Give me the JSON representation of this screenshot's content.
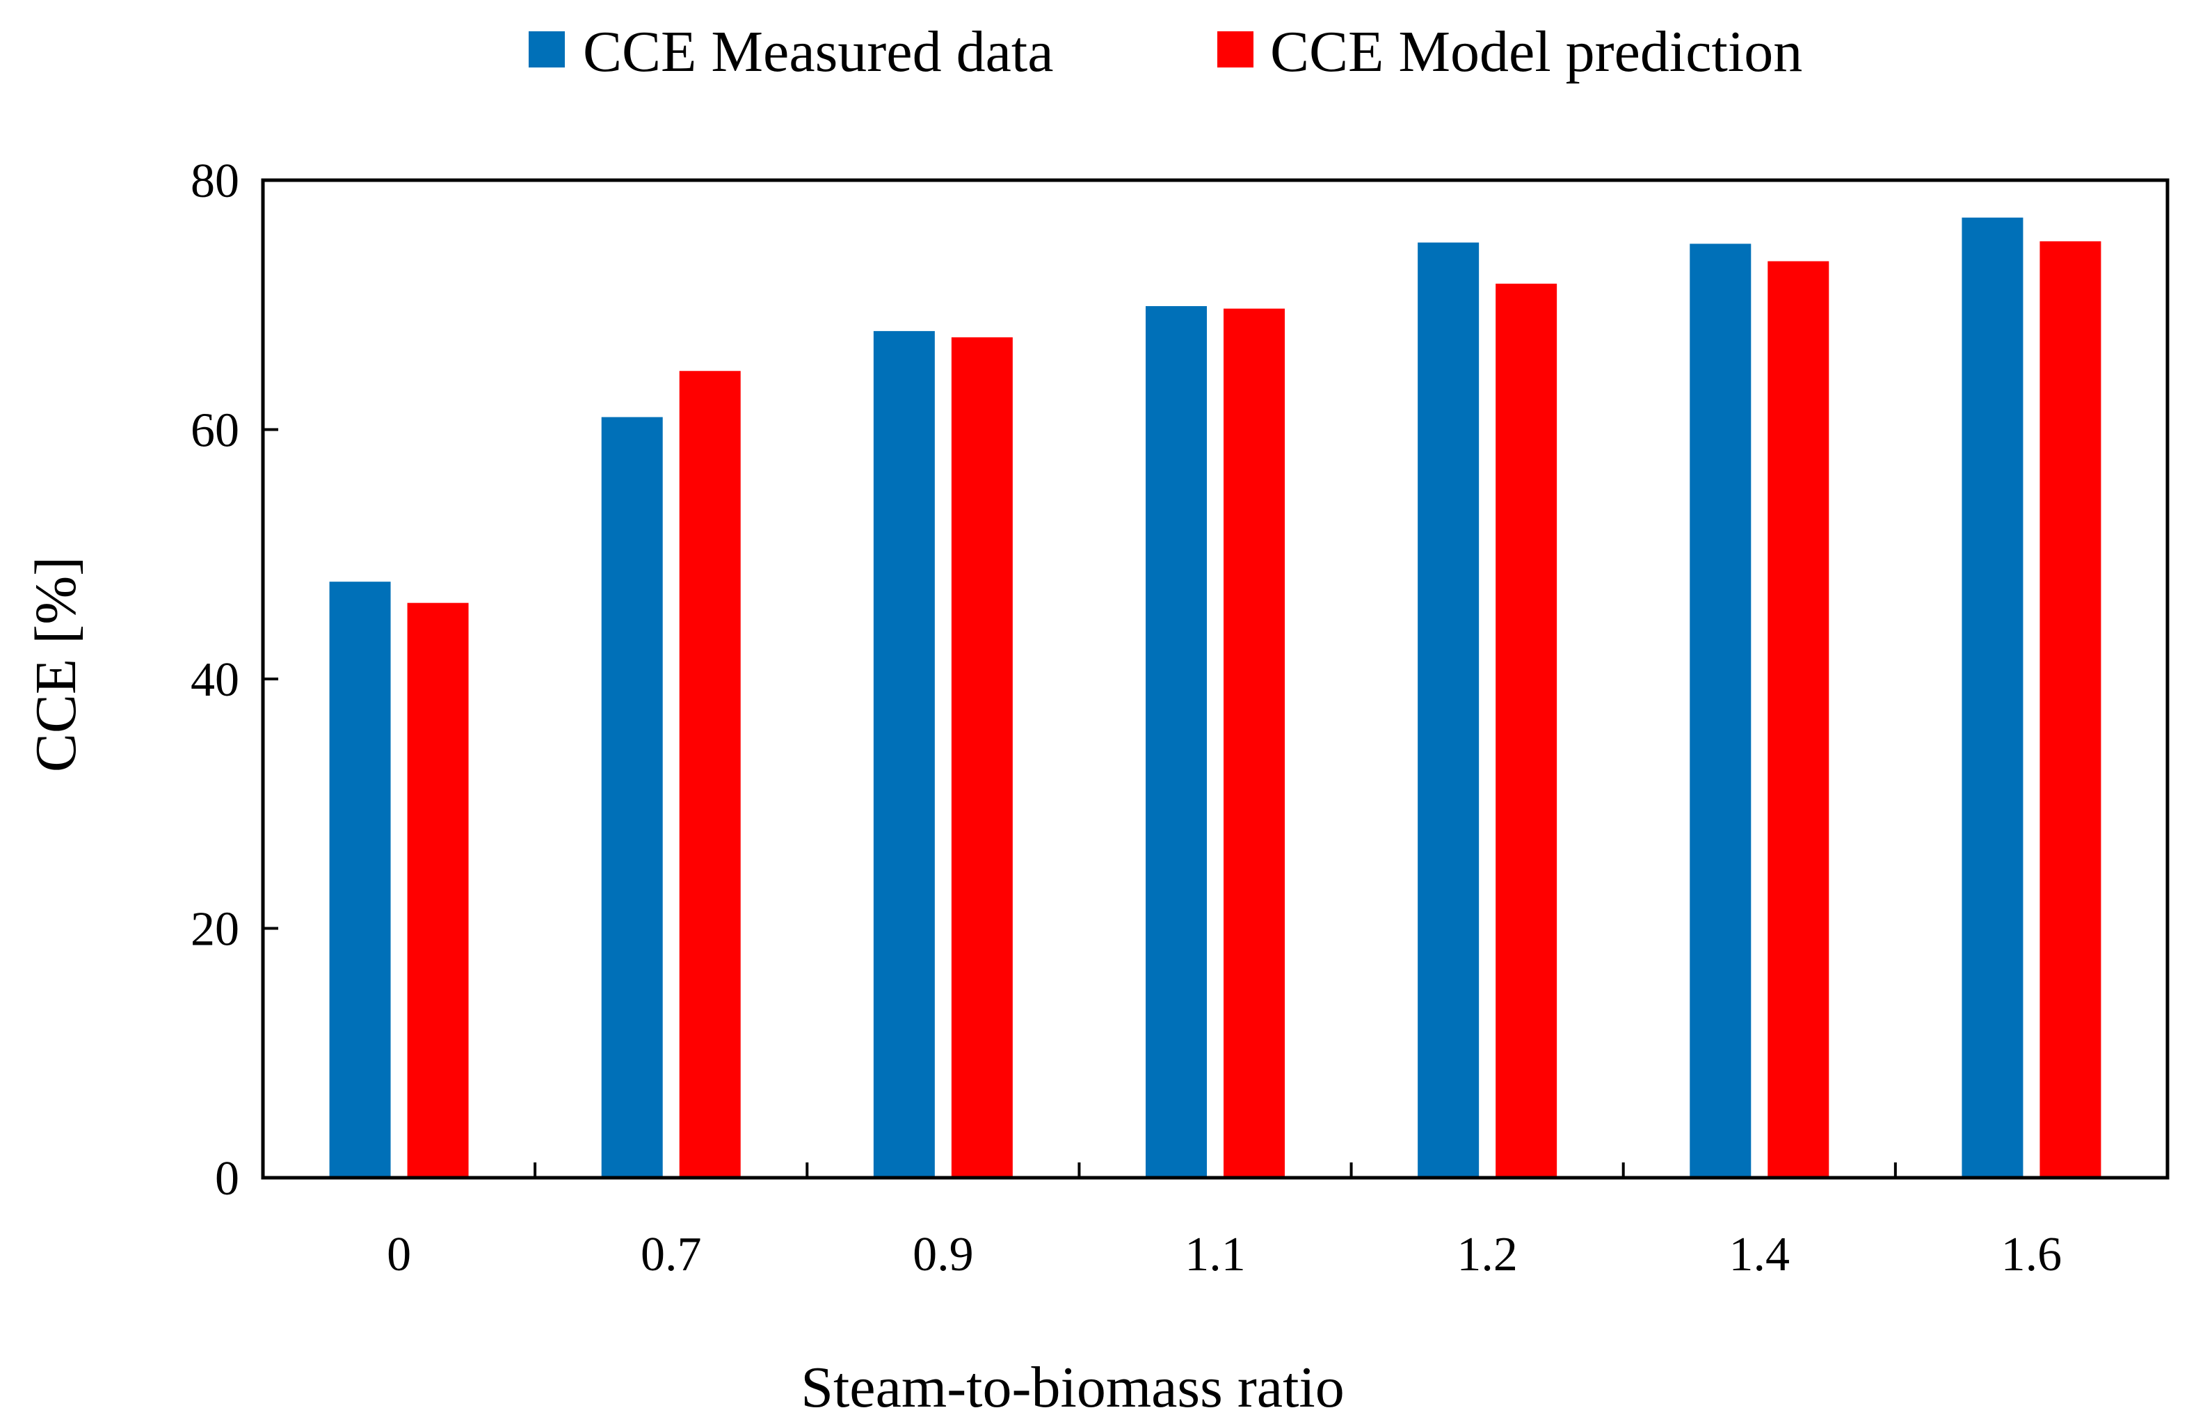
{
  "chart_data": {
    "type": "bar",
    "title": "",
    "xlabel": "Steam-to-biomass ratio",
    "ylabel": "CCE [%]",
    "categories": [
      "0",
      "0.7",
      "0.9",
      "1.1",
      "1.2",
      "1.4",
      "1.6"
    ],
    "series": [
      {
        "name": "CCE Measured data",
        "color": "#0070B8",
        "values": [
          47.8,
          61.0,
          67.9,
          69.9,
          75.0,
          74.9,
          77.0
        ]
      },
      {
        "name": "CCE Model prediction",
        "color": "#FF0000",
        "values": [
          46.1,
          64.7,
          67.4,
          69.7,
          71.7,
          73.5,
          75.1
        ]
      }
    ],
    "ylim": [
      0,
      80
    ],
    "yticks": [
      "0",
      "20",
      "40",
      "60",
      "80"
    ],
    "grid": false,
    "legend": "top-center"
  }
}
